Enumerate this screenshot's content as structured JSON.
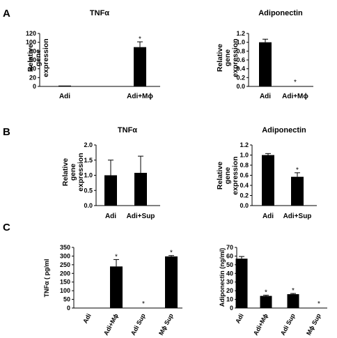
{
  "panel_labels": [
    "A",
    "B",
    "C"
  ],
  "chart_data": [
    {
      "type": "bar",
      "panel": "A",
      "title": "TNFα",
      "ylabel": "Relative gene expression",
      "categories": [
        "Adi",
        "Adi+Mϕ"
      ],
      "values": [
        1,
        89
      ],
      "errors": [
        0,
        12
      ],
      "significant": [
        false,
        true
      ],
      "ylim": [
        0,
        120
      ],
      "yticks": [
        "0",
        "20",
        "40",
        "60",
        "80",
        "100",
        "120"
      ]
    },
    {
      "type": "bar",
      "panel": "A",
      "title": "Adiponectin",
      "ylabel": "Relative gene expression",
      "categories": [
        "Adi",
        "Adi+Mϕ"
      ],
      "values": [
        1.0,
        0.0
      ],
      "errors": [
        0.07,
        0
      ],
      "significant": [
        false,
        true
      ],
      "ylim": [
        0,
        1.2
      ],
      "yticks": [
        "0.0",
        "0.2",
        "0.4",
        "0.6",
        "0.8",
        "1.0",
        "1.2"
      ]
    },
    {
      "type": "bar",
      "panel": "B",
      "title": "TNFα",
      "ylabel": "Relative gene expression",
      "categories": [
        "Adi",
        "Adi+Sup"
      ],
      "values": [
        1.0,
        1.08
      ],
      "errors": [
        0.5,
        0.55
      ],
      "significant": [
        false,
        false
      ],
      "ylim": [
        0,
        2.0
      ],
      "yticks": [
        "0.0",
        "0.5",
        "1.0",
        "1.5",
        "2.0"
      ]
    },
    {
      "type": "bar",
      "panel": "B",
      "title": "Adiponectin",
      "ylabel": "Relative gene expression",
      "categories": [
        "Adi",
        "Adi+Sup"
      ],
      "values": [
        1.0,
        0.57
      ],
      "errors": [
        0.03,
        0.08
      ],
      "significant": [
        false,
        true
      ],
      "ylim": [
        0,
        1.2
      ],
      "yticks": [
        "0.0",
        "0.2",
        "0.4",
        "0.6",
        "0.8",
        "1.0",
        "1.2"
      ]
    },
    {
      "type": "bar",
      "panel": "C",
      "title": "",
      "ylabel": "TNFα ( pg/ml",
      "categories": [
        "Adi",
        "Adi+Mϕ",
        "Adi Sup",
        "Mϕ Sup"
      ],
      "values": [
        0,
        240,
        0,
        298
      ],
      "errors": [
        0,
        40,
        0,
        5
      ],
      "significant": [
        false,
        true,
        true,
        true
      ],
      "ylim": [
        0,
        350
      ],
      "yticks": [
        "0",
        "50",
        "100",
        "150",
        "200",
        "250",
        "300",
        "350"
      ]
    },
    {
      "type": "bar",
      "panel": "C",
      "title": "",
      "ylabel": "Adiponectin (ng/ml)",
      "categories": [
        "Adi",
        "Adi+Mϕ",
        "Adi Sup",
        "Mϕ Sup"
      ],
      "values": [
        57,
        14,
        16,
        0
      ],
      "errors": [
        2.5,
        0.8,
        0.8,
        0
      ],
      "significant": [
        false,
        true,
        true,
        true
      ],
      "ylim": [
        0,
        70
      ],
      "yticks": [
        "0",
        "10",
        "20",
        "30",
        "40",
        "50",
        "60",
        "70"
      ]
    }
  ]
}
